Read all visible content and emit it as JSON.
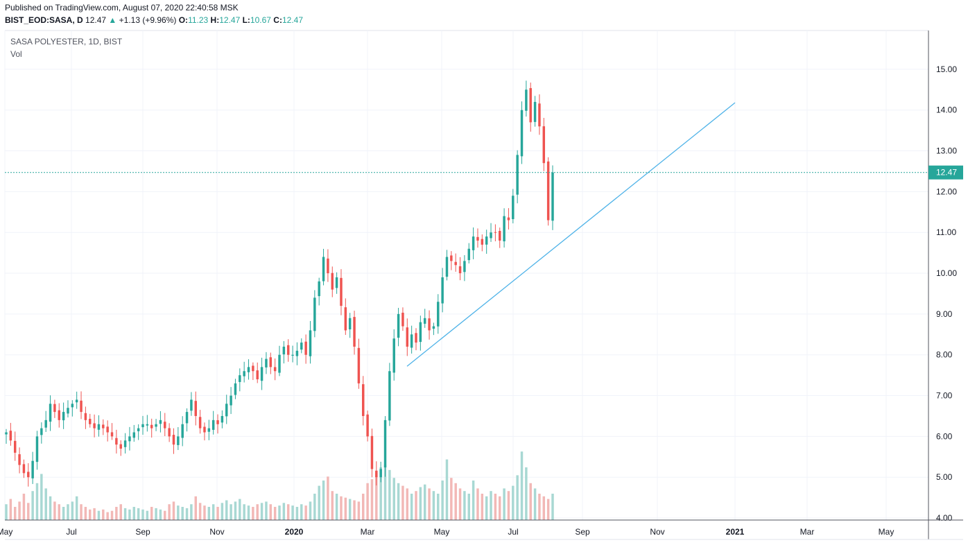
{
  "header": {
    "published": "Published on TradingView.com, August 07, 2020 22:40:58 MSK",
    "symbol": "BIST_EOD:SASA, D",
    "last": "12.47",
    "arrow": "▲",
    "change": "+1.13 (+9.96%)",
    "o_label": "O:",
    "o_value": "11.23",
    "h_label": "H:",
    "h_value": "12.47",
    "l_label": "L:",
    "l_value": "10.67",
    "c_label": "C:",
    "c_value": "12.47"
  },
  "legend": {
    "title": "SASA POLYESTER, 1D, BIST",
    "volume": "Vol"
  },
  "colors": {
    "up": "#26a69a",
    "down": "#ef5350",
    "trendline": "#4fb3e8",
    "grid": "#f0f3fa"
  },
  "chart_data": {
    "type": "candlestick",
    "y_axis": {
      "ticks": [
        "15.00",
        "14.00",
        "13.00",
        "12.00",
        "11.00",
        "10.00",
        "9.00",
        "8.00",
        "7.00",
        "6.00",
        "5.00",
        "4.00"
      ],
      "range": [
        3.95,
        15.95
      ]
    },
    "x_axis": {
      "ticks": [
        "May",
        "Jul",
        "Sep",
        "Nov",
        "2020",
        "Mar",
        "May",
        "Jul",
        "Sep",
        "Nov",
        "2021",
        "Mar",
        "May"
      ]
    },
    "last_price": "12.47",
    "trendline": {
      "from": [
        "2020-04-01",
        7.72
      ],
      "to": [
        "2020-12-31",
        14.18
      ]
    },
    "closes": [
      6.1,
      5.9,
      5.6,
      5.3,
      5.1,
      5.0,
      5.4,
      6.0,
      6.2,
      6.4,
      6.8,
      6.6,
      6.4,
      6.6,
      6.7,
      6.8,
      6.9,
      6.6,
      6.4,
      6.3,
      6.2,
      6.3,
      6.2,
      6.1,
      6.0,
      5.8,
      5.7,
      5.9,
      6.0,
      6.1,
      6.2,
      6.3,
      6.3,
      6.2,
      6.3,
      6.4,
      6.2,
      6.0,
      5.8,
      6.0,
      6.3,
      6.6,
      6.9,
      6.5,
      6.2,
      6.1,
      6.2,
      6.4,
      6.3,
      6.5,
      6.8,
      7.0,
      7.3,
      7.5,
      7.6,
      7.7,
      7.6,
      7.4,
      7.7,
      7.9,
      7.7,
      7.6,
      8.0,
      8.2,
      8.0,
      8.0,
      8.1,
      8.3,
      8.0,
      8.6,
      9.4,
      9.8,
      10.4,
      10.0,
      9.6,
      9.9,
      9.2,
      8.6,
      8.9,
      8.2,
      7.3,
      6.5,
      6.0,
      5.2,
      5.0,
      5.2,
      6.4,
      7.6,
      8.4,
      9.0,
      8.7,
      8.2,
      8.5,
      8.3,
      8.8,
      8.9,
      8.6,
      8.7,
      9.3,
      9.9,
      10.4,
      10.3,
      10.2,
      10.0,
      10.3,
      10.6,
      10.9,
      10.8,
      10.7,
      10.9,
      11.0,
      11.0,
      10.8,
      11.4,
      11.3,
      11.9,
      12.9,
      14.0,
      14.5,
      13.7,
      14.2,
      13.6,
      12.7,
      11.3,
      12.47
    ],
    "volumes": [
      0.12,
      0.16,
      0.1,
      0.14,
      0.2,
      0.13,
      0.22,
      0.28,
      0.35,
      0.24,
      0.18,
      0.14,
      0.12,
      0.1,
      0.12,
      0.14,
      0.18,
      0.12,
      0.1,
      0.08,
      0.09,
      0.07,
      0.08,
      0.06,
      0.07,
      0.1,
      0.12,
      0.09,
      0.08,
      0.1,
      0.09,
      0.08,
      0.07,
      0.1,
      0.09,
      0.08,
      0.07,
      0.12,
      0.14,
      0.11,
      0.1,
      0.09,
      0.12,
      0.18,
      0.13,
      0.11,
      0.1,
      0.12,
      0.1,
      0.13,
      0.15,
      0.12,
      0.14,
      0.16,
      0.12,
      0.11,
      0.1,
      0.12,
      0.13,
      0.14,
      0.12,
      0.1,
      0.11,
      0.13,
      0.12,
      0.11,
      0.1,
      0.12,
      0.11,
      0.14,
      0.2,
      0.26,
      0.3,
      0.33,
      0.22,
      0.2,
      0.18,
      0.17,
      0.16,
      0.15,
      0.14,
      0.2,
      0.28,
      0.31,
      0.36,
      0.4,
      0.42,
      0.38,
      0.32,
      0.28,
      0.26,
      0.24,
      0.2,
      0.22,
      0.25,
      0.27,
      0.24,
      0.22,
      0.2,
      0.3,
      0.46,
      0.32,
      0.28,
      0.24,
      0.22,
      0.2,
      0.3,
      0.24,
      0.2,
      0.18,
      0.22,
      0.2,
      0.18,
      0.24,
      0.22,
      0.26,
      0.34,
      0.52,
      0.4,
      0.28,
      0.24,
      0.2,
      0.18,
      0.16,
      0.2
    ]
  }
}
